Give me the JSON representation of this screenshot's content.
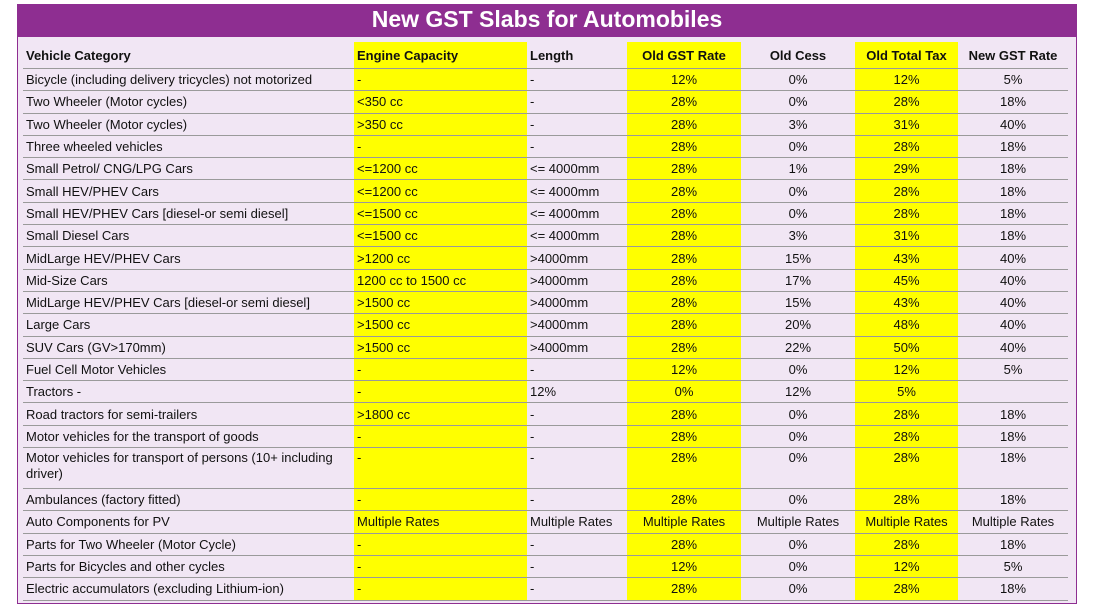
{
  "title": "New GST Slabs for Automobiles",
  "headers": [
    "Vehicle Category",
    "Engine Capacity",
    "Length",
    "Old GST Rate",
    "Old Cess",
    "Old Total Tax",
    "New GST Rate"
  ],
  "rows": [
    [
      "Bicycle (including delivery tricycles) not motorized",
      "-",
      "-",
      "12%",
      "0%",
      "12%",
      "5%"
    ],
    [
      "Two Wheeler (Motor cycles)",
      "<350 cc",
      "-",
      "28%",
      "0%",
      "28%",
      "18%"
    ],
    [
      "Two Wheeler (Motor cycles)",
      ">350 cc",
      "-",
      "28%",
      "3%",
      "31%",
      "40%"
    ],
    [
      "Three wheeled vehicles",
      "-",
      "-",
      "28%",
      "0%",
      "28%",
      "18%"
    ],
    [
      "Small Petrol/ CNG/LPG Cars",
      "<=1200 cc",
      "<= 4000mm",
      "28%",
      "1%",
      "29%",
      "18%"
    ],
    [
      "Small HEV/PHEV Cars",
      "<=1200 cc",
      "<= 4000mm",
      "28%",
      "0%",
      "28%",
      "18%"
    ],
    [
      "Small HEV/PHEV Cars [diesel-or semi diesel]",
      "<=1500 cc",
      "<= 4000mm",
      "28%",
      "0%",
      "28%",
      "18%"
    ],
    [
      "Small Diesel Cars",
      "<=1500 cc",
      "<= 4000mm",
      "28%",
      "3%",
      "31%",
      "18%"
    ],
    [
      "MidLarge HEV/PHEV Cars",
      ">1200 cc",
      ">4000mm",
      "28%",
      "15%",
      "43%",
      "40%"
    ],
    [
      "Mid-Size Cars",
      "1200 cc to 1500 cc",
      ">4000mm",
      "28%",
      "17%",
      "45%",
      "40%"
    ],
    [
      "MidLarge HEV/PHEV Cars [diesel-or semi diesel]",
      ">1500 cc",
      ">4000mm",
      "28%",
      "15%",
      "43%",
      "40%"
    ],
    [
      "Large Cars",
      ">1500 cc",
      ">4000mm",
      "28%",
      "20%",
      "48%",
      "40%"
    ],
    [
      "SUV Cars (GV>170mm)",
      ">1500 cc",
      ">4000mm",
      "28%",
      "22%",
      "50%",
      "40%"
    ],
    [
      "Fuel Cell Motor Vehicles",
      "-",
      "-",
      "12%",
      "0%",
      "12%",
      "5%"
    ],
    [
      "Tractors     -",
      "-",
      "12%",
      "0%",
      "12%",
      "5%",
      ""
    ],
    [
      "Road tractors for semi-trailers",
      ">1800 cc",
      "-",
      "28%",
      "0%",
      "28%",
      "18%"
    ],
    [
      "Motor vehicles for the transport of goods",
      "-",
      "-",
      "28%",
      "0%",
      "28%",
      "18%"
    ],
    [
      "Motor vehicles for transport of persons (10+ including driver)",
      "-",
      "-",
      "28%",
      "0%",
      "28%",
      "18%"
    ],
    [
      "Ambulances (factory fitted)",
      "-",
      "-",
      "28%",
      "0%",
      "28%",
      "18%"
    ],
    [
      "Auto Components for PV",
      "Multiple Rates",
      "Multiple Rates",
      "Multiple Rates",
      "Multiple Rates",
      "Multiple Rates",
      "Multiple Rates"
    ],
    [
      "Parts for Two Wheeler (Motor Cycle)",
      "-",
      "-",
      "28%",
      "0%",
      "28%",
      "18%"
    ],
    [
      "Parts for Bicycles and other cycles",
      "-",
      "-",
      "12%",
      "0%",
      "12%",
      "5%"
    ],
    [
      "Electric accumulators (excluding Lithium-ion)",
      "-",
      "-",
      "28%",
      "0%",
      "28%",
      "18%"
    ]
  ],
  "colors": {
    "title_bg": "#8e2e91",
    "highlight": "#ffff00",
    "panel_bg": "#f1e6f4"
  }
}
